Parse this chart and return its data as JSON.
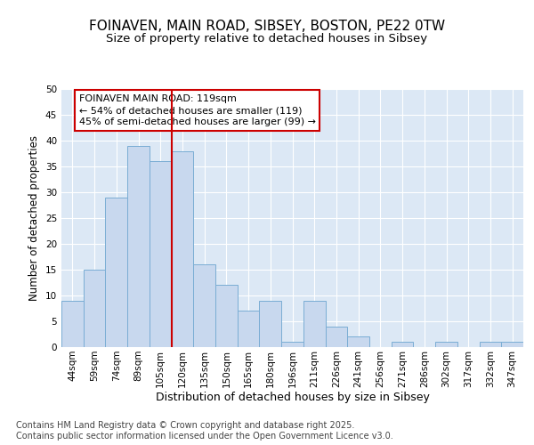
{
  "title_line1": "FOINAVEN, MAIN ROAD, SIBSEY, BOSTON, PE22 0TW",
  "title_line2": "Size of property relative to detached houses in Sibsey",
  "xlabel": "Distribution of detached houses by size in Sibsey",
  "ylabel": "Number of detached properties",
  "bar_color": "#c8d8ee",
  "bar_edge_color": "#7aadd4",
  "marker_line_color": "#cc0000",
  "annotation_text": "FOINAVEN MAIN ROAD: 119sqm\n← 54% of detached houses are smaller (119)\n45% of semi-detached houses are larger (99) →",
  "annotation_box_edge_color": "#cc0000",
  "categories": [
    "44sqm",
    "59sqm",
    "74sqm",
    "89sqm",
    "105sqm",
    "120sqm",
    "135sqm",
    "150sqm",
    "165sqm",
    "180sqm",
    "196sqm",
    "211sqm",
    "226sqm",
    "241sqm",
    "256sqm",
    "271sqm",
    "286sqm",
    "302sqm",
    "317sqm",
    "332sqm",
    "347sqm"
  ],
  "values": [
    9,
    15,
    29,
    39,
    36,
    38,
    16,
    12,
    7,
    9,
    1,
    9,
    4,
    2,
    0,
    1,
    0,
    1,
    0,
    1,
    1
  ],
  "ylim": [
    0,
    50
  ],
  "yticks": [
    0,
    5,
    10,
    15,
    20,
    25,
    30,
    35,
    40,
    45,
    50
  ],
  "marker_bar_index": 5,
  "background_color": "#ffffff",
  "plot_bg_color": "#dce8f5",
  "footer_text": "Contains HM Land Registry data © Crown copyright and database right 2025.\nContains public sector information licensed under the Open Government Licence v3.0.",
  "grid_color": "#ffffff",
  "title_fontsize": 11,
  "subtitle_fontsize": 9.5,
  "ylabel_fontsize": 8.5,
  "xlabel_fontsize": 9,
  "tick_fontsize": 7.5,
  "annotation_fontsize": 8,
  "footer_fontsize": 7
}
